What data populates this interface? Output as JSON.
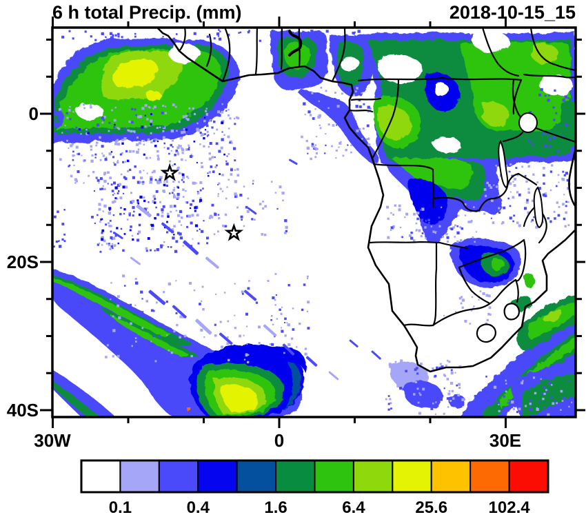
{
  "figure": {
    "title": "6 h total Precip. (mm)",
    "timestamp": "2018-10-15_15"
  },
  "axes": {
    "lat_labels": [
      "0",
      "20S",
      "40S"
    ],
    "lon_labels": [
      "30W",
      "0",
      "30E"
    ]
  },
  "markers": {
    "stars": [
      {
        "lon": -14.5,
        "lat": -8.0
      },
      {
        "lon": -6.0,
        "lat": -16.1
      }
    ]
  },
  "colorbar": {
    "colors": [
      "#FFFFFF",
      "#A6A6F8",
      "#4A4AFA",
      "#0505EF",
      "#05509E",
      "#078C40",
      "#2DC30E",
      "#8ED80B",
      "#E4F303",
      "#FEC200",
      "#FD6903",
      "#FB0D03"
    ],
    "tick_labels": [
      "0.1",
      "0.4",
      "1.6",
      "6.4",
      "25.6",
      "102.4"
    ]
  }
}
